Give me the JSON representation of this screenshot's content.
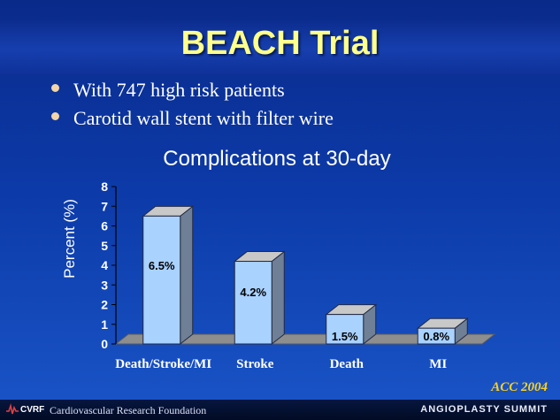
{
  "slide": {
    "title": "BEACH Trial",
    "bullets": [
      "With 747 high risk patients",
      "Carotid wall stent with filter wire"
    ],
    "source_tag": "ACC 2004",
    "footer": {
      "logo_text": "CVRF",
      "organization": "Cardiovascular Research Foundation",
      "event": "ANGIOPLASTY SUMMIT"
    },
    "colors": {
      "background": "#0c3aa8",
      "title": "#ffff8c",
      "bar_front": "#a9d2ff",
      "bar_top": "#c8c8c8",
      "bar_side": "#6f7f96",
      "floor": "#8e8e8e",
      "source_tag": "#ffd21a"
    }
  },
  "chart_data": {
    "type": "bar",
    "title": "Complications at 30-day",
    "ylabel": "Percent (%)",
    "xlabel": "",
    "ylim": [
      0,
      8
    ],
    "yticks": [
      "0",
      "1",
      "2",
      "3",
      "4",
      "5",
      "6",
      "7",
      "8"
    ],
    "categories": [
      "Death/Stroke/MI",
      "Stroke",
      "Death",
      "MI"
    ],
    "values": [
      6.5,
      4.2,
      1.5,
      0.8
    ],
    "data_labels": [
      "6.5%",
      "4.2%",
      "1.5%",
      "0.8%"
    ],
    "three_d": true,
    "grid": false,
    "legend": "none"
  }
}
